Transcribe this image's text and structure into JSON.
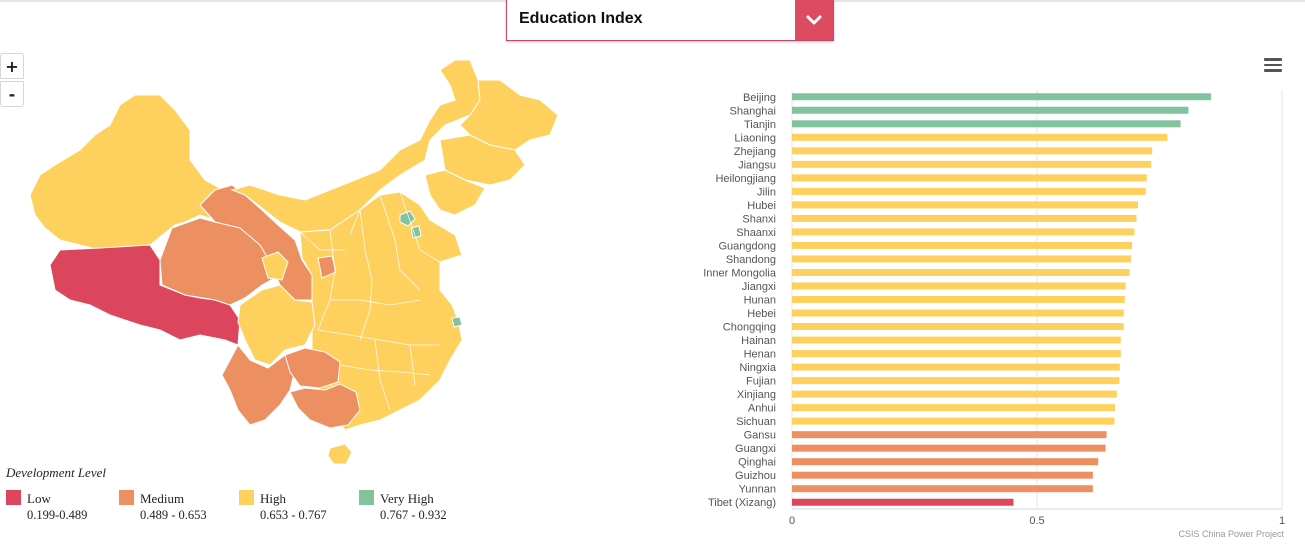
{
  "selector": {
    "label": "Education Index"
  },
  "zoom": {
    "in_label": "+",
    "out_label": "-"
  },
  "legend": {
    "title": "Development Level",
    "items": [
      {
        "name": "Low",
        "range": "0.199-0.489",
        "color": "#dc465d"
      },
      {
        "name": "Medium",
        "range": "0.489 - 0.653",
        "color": "#ec9062"
      },
      {
        "name": "High",
        "range": "0.653 - 0.767",
        "color": "#fed15e"
      },
      {
        "name": "Very High",
        "range": "0.767 - 0.932",
        "color": "#82c29c"
      }
    ]
  },
  "menu_icon": "hamburger-menu-icon",
  "credit": "CSIS China Power Project",
  "chart_data": {
    "type": "bar",
    "orientation": "horizontal",
    "categories": [
      "Beijing",
      "Shanghai",
      "Tianjin",
      "Liaoning",
      "Zhejiang",
      "Jiangsu",
      "Heilongjiang",
      "Jilin",
      "Hubei",
      "Shanxi",
      "Shaanxi",
      "Guangdong",
      "Shandong",
      "Inner Mongolia",
      "Jiangxi",
      "Hunan",
      "Hebei",
      "Chongqing",
      "Hainan",
      "Henan",
      "Ningxia",
      "Fujian",
      "Xinjiang",
      "Anhui",
      "Sichuan",
      "Gansu",
      "Guangxi",
      "Qinghai",
      "Guizhou",
      "Yunnan",
      "Tibet (Xizang)"
    ],
    "values": [
      0.855,
      0.809,
      0.793,
      0.766,
      0.735,
      0.733,
      0.724,
      0.722,
      0.706,
      0.703,
      0.699,
      0.694,
      0.692,
      0.689,
      0.681,
      0.679,
      0.677,
      0.677,
      0.671,
      0.671,
      0.669,
      0.668,
      0.663,
      0.659,
      0.658,
      0.642,
      0.64,
      0.625,
      0.614,
      0.614,
      0.452
    ],
    "levels": [
      "Very High",
      "Very High",
      "Very High",
      "High",
      "High",
      "High",
      "High",
      "High",
      "High",
      "High",
      "High",
      "High",
      "High",
      "High",
      "High",
      "High",
      "High",
      "High",
      "High",
      "High",
      "High",
      "High",
      "High",
      "High",
      "High",
      "Medium",
      "Medium",
      "Medium",
      "Medium",
      "Medium",
      "Low"
    ],
    "xlim": [
      0,
      1
    ],
    "xticks": [
      "0",
      "0.5",
      "1"
    ],
    "grid": true,
    "colors": {
      "Low": "#dc465d",
      "Medium": "#ec9062",
      "High": "#fed15e",
      "Very High": "#82c29c"
    }
  }
}
